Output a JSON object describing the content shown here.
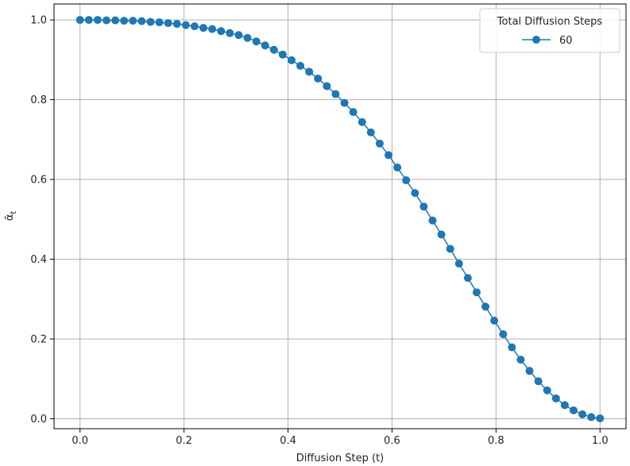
{
  "chart_data": {
    "type": "line",
    "title": "",
    "xlabel": "Diffusion Step (t)",
    "ylabel": "ᾱ",
    "ylabel_subscript": "t",
    "xlim": [
      -0.05,
      1.05
    ],
    "ylim": [
      -0.025,
      1.04
    ],
    "xticks": [
      0.0,
      0.2,
      0.4,
      0.6,
      0.8,
      1.0
    ],
    "xtick_labels": [
      "0.0",
      "0.2",
      "0.4",
      "0.6",
      "0.8",
      "1.0"
    ],
    "yticks": [
      0.0,
      0.2,
      0.4,
      0.6,
      0.8,
      1.0
    ],
    "ytick_labels": [
      "0.0",
      "0.2",
      "0.4",
      "0.6",
      "0.8",
      "1.0"
    ],
    "grid": true,
    "legend": {
      "title": "Total Diffusion Steps",
      "placement": "upper right"
    },
    "series": [
      {
        "name": "60",
        "color": "#1f77b4",
        "marker": "circle",
        "x": [
          0.0,
          0.0169,
          0.0339,
          0.0508,
          0.0678,
          0.0847,
          0.1017,
          0.1186,
          0.1356,
          0.1525,
          0.1695,
          0.1864,
          0.2034,
          0.2203,
          0.2373,
          0.2542,
          0.2712,
          0.2881,
          0.3051,
          0.322,
          0.339,
          0.3559,
          0.3729,
          0.3898,
          0.4068,
          0.4237,
          0.4407,
          0.4576,
          0.4746,
          0.4915,
          0.5085,
          0.5254,
          0.5424,
          0.5593,
          0.5763,
          0.5932,
          0.6102,
          0.6271,
          0.6441,
          0.661,
          0.678,
          0.6949,
          0.7119,
          0.7288,
          0.7458,
          0.7627,
          0.7797,
          0.7966,
          0.8136,
          0.8305,
          0.8475,
          0.8644,
          0.8814,
          0.8983,
          0.9153,
          0.9322,
          0.9492,
          0.9661,
          0.9831,
          1.0
        ],
        "y": [
          1.0,
          1.0,
          1.0,
          0.999,
          0.999,
          0.998,
          0.998,
          0.997,
          0.995,
          0.994,
          0.992,
          0.99,
          0.987,
          0.984,
          0.98,
          0.977,
          0.972,
          0.967,
          0.962,
          0.955,
          0.946,
          0.936,
          0.925,
          0.913,
          0.899,
          0.885,
          0.87,
          0.853,
          0.834,
          0.814,
          0.792,
          0.769,
          0.744,
          0.718,
          0.69,
          0.661,
          0.63,
          0.598,
          0.566,
          0.532,
          0.497,
          0.462,
          0.426,
          0.389,
          0.353,
          0.317,
          0.281,
          0.246,
          0.212,
          0.179,
          0.148,
          0.12,
          0.094,
          0.071,
          0.051,
          0.034,
          0.021,
          0.011,
          0.004,
          0.001
        ]
      }
    ]
  }
}
